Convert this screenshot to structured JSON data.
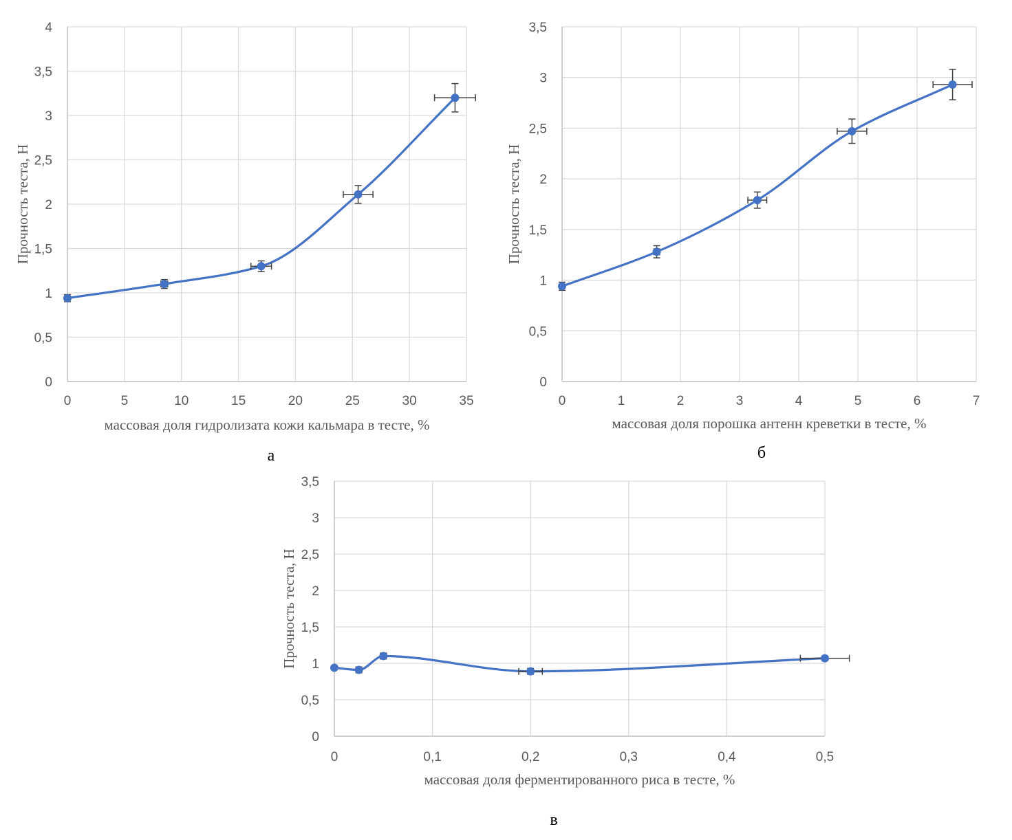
{
  "colors": {
    "series": "#4472C4",
    "grid": "#D9D9D9",
    "axis": "#BFBFBF",
    "text": "#595959",
    "error": "#404040"
  },
  "chart_data": [
    {
      "type": "scatter",
      "id": "a",
      "caption": "а",
      "xlabel": "массовая доля гидролизата кожи кальмара в тесте, %",
      "ylabel": "Прочность теста, Н",
      "xlim": [
        0,
        35
      ],
      "ylim": [
        0,
        4
      ],
      "x_ticks": [
        "0",
        "5",
        "10",
        "15",
        "20",
        "25",
        "30",
        "35"
      ],
      "y_ticks": [
        "0",
        "0,5",
        "1",
        "1,5",
        "2",
        "2,5",
        "3",
        "3,5",
        "4"
      ],
      "grid": true,
      "smooth_line": true,
      "series": [
        {
          "name": "Прочность теста",
          "x": [
            0,
            8.5,
            17,
            25.5,
            34
          ],
          "y": [
            0.94,
            1.1,
            1.3,
            2.11,
            3.2
          ],
          "x_err": [
            0,
            0.3,
            0.9,
            1.3,
            1.8
          ],
          "y_err": [
            0.04,
            0.05,
            0.06,
            0.1,
            0.16
          ]
        }
      ]
    },
    {
      "type": "scatter",
      "id": "b",
      "caption": "б",
      "xlabel": "массовая доля порошка антенн креветки в тесте, %",
      "ylabel": "Прочность теста, Н",
      "xlim": [
        0,
        7
      ],
      "ylim": [
        0,
        3.5
      ],
      "x_ticks": [
        "0",
        "1",
        "2",
        "3",
        "4",
        "5",
        "6",
        "7"
      ],
      "y_ticks": [
        "0",
        "0,5",
        "1",
        "1,5",
        "2",
        "2,5",
        "3",
        "3,5"
      ],
      "grid": true,
      "smooth_line": true,
      "series": [
        {
          "name": "Прочность теста",
          "x": [
            0,
            1.6,
            3.3,
            4.9,
            6.6
          ],
          "y": [
            0.94,
            1.28,
            1.79,
            2.47,
            2.93
          ],
          "x_err": [
            0,
            0.05,
            0.16,
            0.25,
            0.33
          ],
          "y_err": [
            0.04,
            0.06,
            0.08,
            0.12,
            0.15
          ]
        }
      ]
    },
    {
      "type": "scatter",
      "id": "v",
      "caption": "в",
      "xlabel": "массовая доля ферментированного риса в тесте, %",
      "ylabel": "Прочность теста, Н",
      "xlim": [
        0,
        0.5
      ],
      "ylim": [
        0,
        3.5
      ],
      "x_ticks": [
        "0",
        "0,1",
        "0,2",
        "0,3",
        "0,4",
        "0,5"
      ],
      "y_ticks": [
        "0",
        "0,5",
        "1",
        "1,5",
        "2",
        "2,5",
        "3",
        "3,5"
      ],
      "grid": true,
      "smooth_line": true,
      "series": [
        {
          "name": "Прочность теста",
          "x": [
            0,
            0.025,
            0.05,
            0.2,
            0.5
          ],
          "y": [
            0.94,
            0.91,
            1.1,
            0.89,
            1.07
          ],
          "x_err": [
            0,
            0.001,
            0.003,
            0.012,
            0.025
          ],
          "y_err": [
            0.02,
            0.04,
            0.04,
            0.04,
            0.03
          ]
        }
      ]
    }
  ]
}
